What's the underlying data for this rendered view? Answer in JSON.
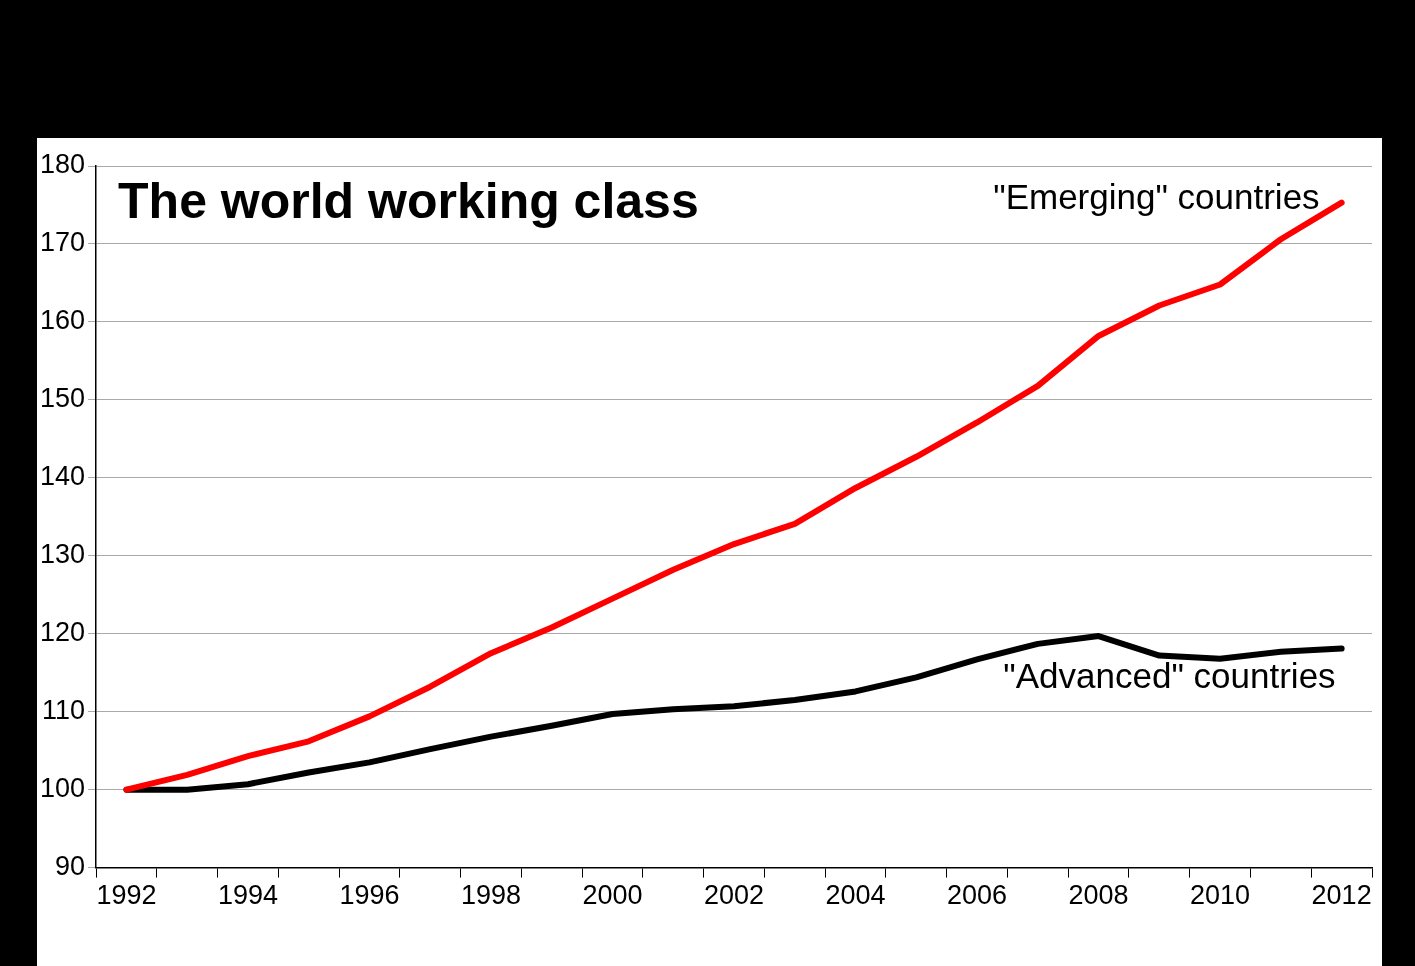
{
  "chart_data": {
    "type": "line",
    "title": "The world working class",
    "categories": [
      "1992",
      null,
      "1994",
      null,
      "1996",
      null,
      "1998",
      null,
      "2000",
      null,
      "2002",
      null,
      "2004",
      null,
      "2006",
      null,
      "2008",
      null,
      "2010",
      null,
      "2012"
    ],
    "series": [
      {
        "name": "\"Emerging\" countries",
        "color": "#ff0000",
        "values": [
          100,
          101.9,
          104.3,
          106.2,
          109.4,
          113.2,
          117.5,
          120.8,
          124.5,
          128.2,
          131.5,
          134.1,
          138.7,
          142.7,
          147.1,
          151.8,
          158.2,
          162.1,
          164.8,
          170.6,
          175.3
        ]
      },
      {
        "name": "\"Advanced\" countries",
        "color": "#000000",
        "values": [
          100,
          100,
          100.7,
          102.2,
          103.5,
          105.2,
          106.8,
          108.2,
          109.7,
          110.3,
          110.7,
          111.5,
          112.6,
          114.4,
          116.7,
          118.7,
          119.7,
          117.2,
          116.8,
          117.7,
          118.1
        ]
      }
    ],
    "ylim": [
      90,
      180
    ],
    "yticks": [
      90,
      100,
      110,
      120,
      130,
      140,
      150,
      160,
      170,
      180
    ],
    "grid": "y",
    "legend": false,
    "marker": "none",
    "line_style": "solid"
  }
}
